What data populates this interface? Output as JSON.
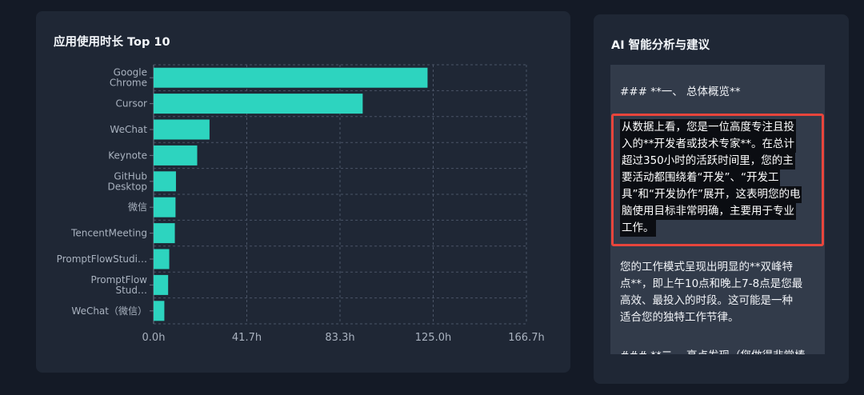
{
  "chart_card": {
    "title": "应用使用时长 Top 10"
  },
  "chart_data": {
    "type": "bar",
    "orientation": "horizontal",
    "title": "应用使用时长 Top 10",
    "categories": [
      [
        "Google",
        "Chrome"
      ],
      [
        "Cursor"
      ],
      [
        "WeChat"
      ],
      [
        "Keynote"
      ],
      [
        "GitHub",
        "Desktop"
      ],
      [
        "微信"
      ],
      [
        "TencentMeeting"
      ],
      [
        "PromptFlowStudi…"
      ],
      [
        "PromptFlow",
        "Stud…"
      ],
      [
        "WeChat（微信）"
      ]
    ],
    "values": [
      122.5,
      93.5,
      25.0,
      19.5,
      10.0,
      9.8,
      9.5,
      7.0,
      6.5,
      4.8
    ],
    "unit": "h",
    "xlim": [
      0,
      166.7
    ],
    "xticks": [
      "0.0h",
      "41.7h",
      "83.3h",
      "125.0h",
      "166.7h"
    ],
    "grid": true,
    "color": "#2dd4bf"
  },
  "ai_card": {
    "title": "AI 智能分析与建议",
    "heading1": "### **一、 总体概览**",
    "highlight_lines": [
      "从数据上看，您是一位高度专注且投",
      "入的**开发者或技术专家**。在总计",
      "超过350小时的活跃时间里，您的主",
      "要活动都围绕着“开发”、“开发工",
      "具”和“开发协作”展开，这表明您的电",
      "脑使用目标非常明确，主要用于专业",
      "工作。"
    ],
    "paragraph2_lines": [
      "您的工作模式呈现出明显的**双峰特",
      "点**，即上午10点和晚上7-8点是您最",
      "高效、最投入的时段。这可能是一种",
      "适合您的独特工作节律。"
    ],
    "heading2": "### **二、 亮点发现（您做得非常棒"
  },
  "colors": {
    "page_bg": "#141a26",
    "card_bg": "#1f2735",
    "panel_bg": "#323b4a",
    "bar": "#2dd4bf",
    "highlight_border": "#e8453c"
  }
}
